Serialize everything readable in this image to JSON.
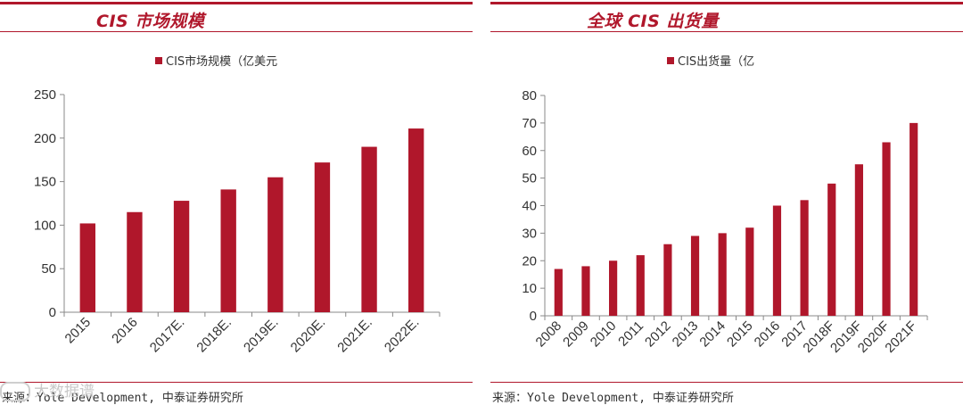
{
  "colors": {
    "bar": "#b0172b",
    "accent": "#b0172b",
    "axis": "#888888"
  },
  "left_panel": {
    "title": "CIS 市场规模",
    "source": "来源：Yole Development, 中泰证券研究所",
    "watermark": "大数据谱"
  },
  "right_panel": {
    "title": "全球 CIS 出货量",
    "source": "来源：Yole Development, 中泰证券研究所"
  },
  "chart_data": [
    {
      "type": "bar",
      "legend": "CIS市场规模（亿美元",
      "categories": [
        "2015",
        "2016",
        "2017E.",
        "2018E.",
        "2019E.",
        "2020E.",
        "2021E.",
        "2022E."
      ],
      "values": [
        102,
        115,
        128,
        141,
        155,
        172,
        190,
        211
      ],
      "ylim": [
        0,
        250
      ],
      "yticks": [
        "0",
        "50",
        "100",
        "150",
        "200",
        "250"
      ],
      "xlabel": "",
      "ylabel": ""
    },
    {
      "type": "bar",
      "legend": "CIS出货量（亿",
      "categories": [
        "2008",
        "2009",
        "2010",
        "2011",
        "2012",
        "2013",
        "2014",
        "2015",
        "2016",
        "2017",
        "2018F",
        "2019F",
        "2020F",
        "2021F"
      ],
      "values": [
        17,
        18,
        20,
        22,
        26,
        29,
        30,
        32,
        40,
        42,
        48,
        55,
        63,
        70
      ],
      "ylim": [
        0,
        80
      ],
      "yticks": [
        "0",
        "10",
        "20",
        "30",
        "40",
        "50",
        "60",
        "70",
        "80"
      ],
      "xlabel": "",
      "ylabel": ""
    }
  ]
}
